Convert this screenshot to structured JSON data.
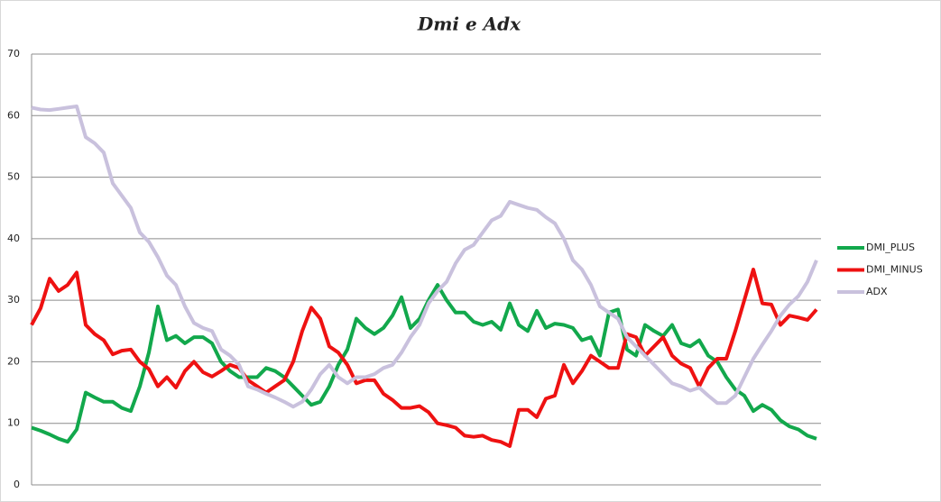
{
  "chart_data": {
    "type": "line",
    "title": "Dmi e Adx",
    "ylim": [
      0,
      70
    ],
    "yticks": [
      0,
      10,
      20,
      30,
      40,
      50,
      60,
      70
    ],
    "grid": true,
    "legend": "right",
    "series": [
      {
        "name": "DMI_PLUS",
        "color": "#12a84c",
        "values": [
          9.3,
          8.8,
          8.2,
          7.5,
          7.0,
          9,
          15,
          14.2,
          13.5,
          13.5,
          12.5,
          12,
          16,
          21.5,
          29,
          23.5,
          24.2,
          23,
          24,
          24,
          23,
          20,
          18.5,
          17.5,
          17.5,
          17.5,
          19,
          18.5,
          17.5,
          16,
          14.5,
          13,
          13.5,
          16,
          19.5,
          22,
          27,
          25.5,
          24.5,
          25.5,
          27.5,
          30.5,
          25.5,
          27,
          30,
          32.5,
          30,
          28,
          28,
          26.5,
          26,
          26.5,
          25.2,
          29.5,
          26,
          25,
          28.3,
          25.5,
          26.2,
          26,
          25.5,
          23.5,
          24,
          21,
          28,
          28.5,
          22,
          21,
          26,
          25,
          24.2,
          26,
          23,
          22.5,
          23.5,
          21,
          20,
          17.5,
          15.5,
          14.5,
          12,
          13,
          12.2,
          10.5,
          9.5,
          9,
          8,
          7.5
        ]
      },
      {
        "name": "DMI_MINUS",
        "color": "#ee1111",
        "values": [
          26,
          28.7,
          33.5,
          31.5,
          32.5,
          34.5,
          26,
          24.5,
          23.5,
          21.2,
          21.8,
          22,
          20,
          18.8,
          16,
          17.5,
          15.8,
          18.5,
          20,
          18.3,
          17.6,
          18.5,
          19.5,
          19,
          17,
          16,
          15,
          16,
          17,
          20,
          25,
          28.8,
          27,
          22.5,
          21.5,
          19.5,
          16.5,
          17,
          17,
          14.8,
          13.8,
          12.5,
          12.5,
          12.8,
          11.8,
          10,
          9.7,
          9.3,
          8,
          7.8,
          8,
          7.3,
          7,
          6.3,
          12.2,
          12.2,
          11,
          14,
          14.5,
          19.5,
          16.5,
          18.5,
          21,
          20,
          19,
          19,
          24.5,
          24,
          21,
          22.5,
          24,
          21,
          19.7,
          19,
          16,
          19,
          20.5,
          20.5,
          25,
          30,
          35,
          29.5,
          29.3,
          26,
          27.5,
          27.2,
          26.8,
          28.5
        ]
      },
      {
        "name": "ADX",
        "color": "#c9c1dd",
        "values": [
          61.3,
          61,
          60.9,
          61.1,
          61.3,
          61.5,
          56.5,
          55.5,
          54,
          49,
          47,
          45,
          41,
          39.5,
          37,
          34,
          32.5,
          29,
          26.3,
          25.5,
          25,
          22,
          21,
          19.5,
          16,
          15.5,
          14.8,
          14.2,
          13.5,
          12.7,
          13.5,
          15.5,
          18,
          19.5,
          17.5,
          16.5,
          17.5,
          17.5,
          18,
          19,
          19.5,
          21.5,
          24,
          26,
          29.5,
          31.5,
          33,
          36,
          38.2,
          39,
          41,
          43,
          43.7,
          46,
          45.5,
          45,
          44.7,
          43.5,
          42.5,
          40,
          36.5,
          35,
          32.5,
          29,
          28,
          27,
          24,
          22.5,
          21,
          19.5,
          18,
          16.5,
          16,
          15.3,
          15.8,
          14.5,
          13.3,
          13.3,
          14.5,
          17.5,
          20.5,
          22.8,
          25,
          27.5,
          29.3,
          30.7,
          33,
          36.5
        ]
      }
    ]
  }
}
